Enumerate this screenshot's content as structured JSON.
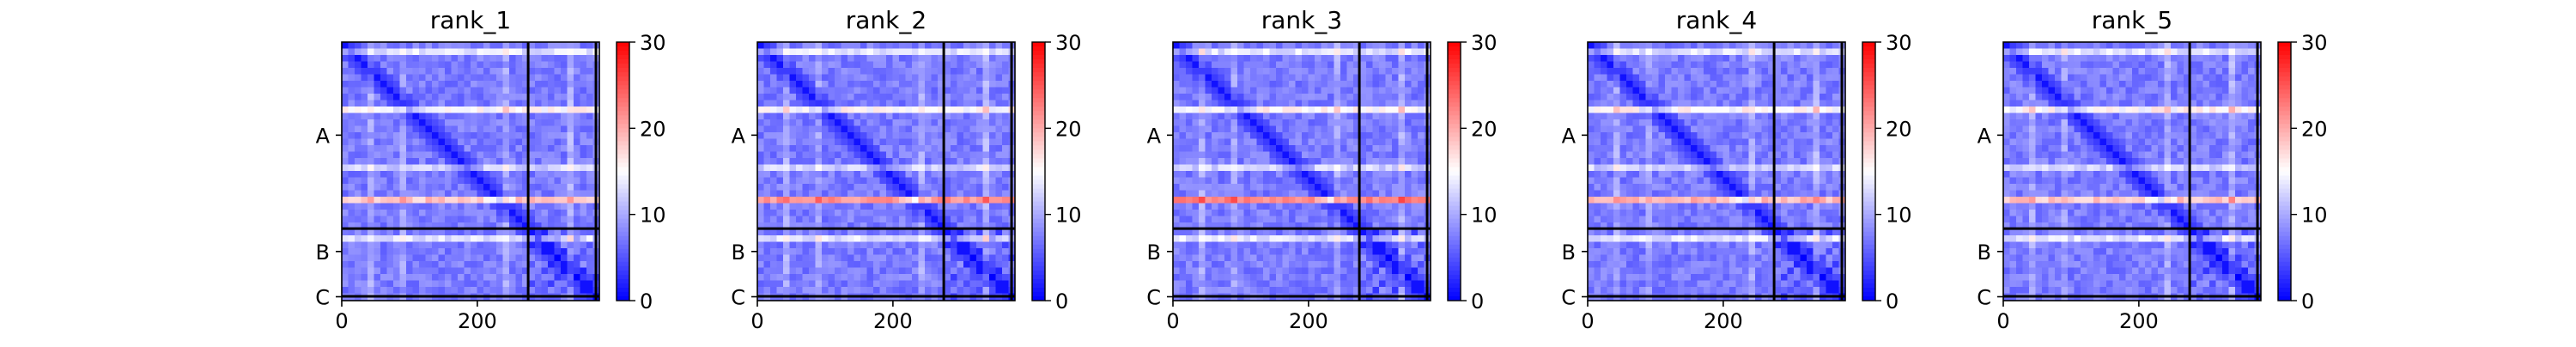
{
  "chart_data": [
    {
      "type": "heatmap",
      "title": "rank_1",
      "xticks": [
        "0",
        "200"
      ],
      "yticks": [
        "A",
        "B",
        "C"
      ],
      "colorbar_ticks": [
        "0",
        "10",
        "20",
        "30"
      ],
      "clim": [
        0,
        30
      ],
      "colormap": "bwr",
      "xlim": [
        0,
        380
      ],
      "boundaries": [
        275,
        375
      ],
      "strong_band_value": 17
    },
    {
      "type": "heatmap",
      "title": "rank_2",
      "xticks": [
        "0",
        "200"
      ],
      "yticks": [
        "A",
        "B",
        "C"
      ],
      "colorbar_ticks": [
        "0",
        "10",
        "20",
        "30"
      ],
      "clim": [
        0,
        30
      ],
      "colormap": "bwr",
      "xlim": [
        0,
        380
      ],
      "boundaries": [
        275,
        375
      ],
      "strong_band_value": 20
    },
    {
      "type": "heatmap",
      "title": "rank_3",
      "xticks": [
        "0",
        "200"
      ],
      "yticks": [
        "A",
        "B",
        "C"
      ],
      "colorbar_ticks": [
        "0",
        "10",
        "20",
        "30"
      ],
      "clim": [
        0,
        30
      ],
      "colormap": "bwr",
      "xlim": [
        0,
        380
      ],
      "boundaries": [
        275,
        375
      ],
      "strong_band_value": 21
    },
    {
      "type": "heatmap",
      "title": "rank_4",
      "xticks": [
        "0",
        "200"
      ],
      "yticks": [
        "A",
        "B",
        "C"
      ],
      "colorbar_ticks": [
        "0",
        "10",
        "20",
        "30"
      ],
      "clim": [
        0,
        30
      ],
      "colormap": "bwr",
      "xlim": [
        0,
        380
      ],
      "boundaries": [
        275,
        375
      ],
      "strong_band_value": 18
    },
    {
      "type": "heatmap",
      "title": "rank_5",
      "xticks": [
        "0",
        "200"
      ],
      "yticks": [
        "A",
        "B",
        "C"
      ],
      "colorbar_ticks": [
        "0",
        "10",
        "20",
        "30"
      ],
      "clim": [
        0,
        30
      ],
      "colormap": "bwr",
      "xlim": [
        0,
        380
      ],
      "boundaries": [
        275,
        375
      ],
      "strong_band_value": 17
    }
  ]
}
